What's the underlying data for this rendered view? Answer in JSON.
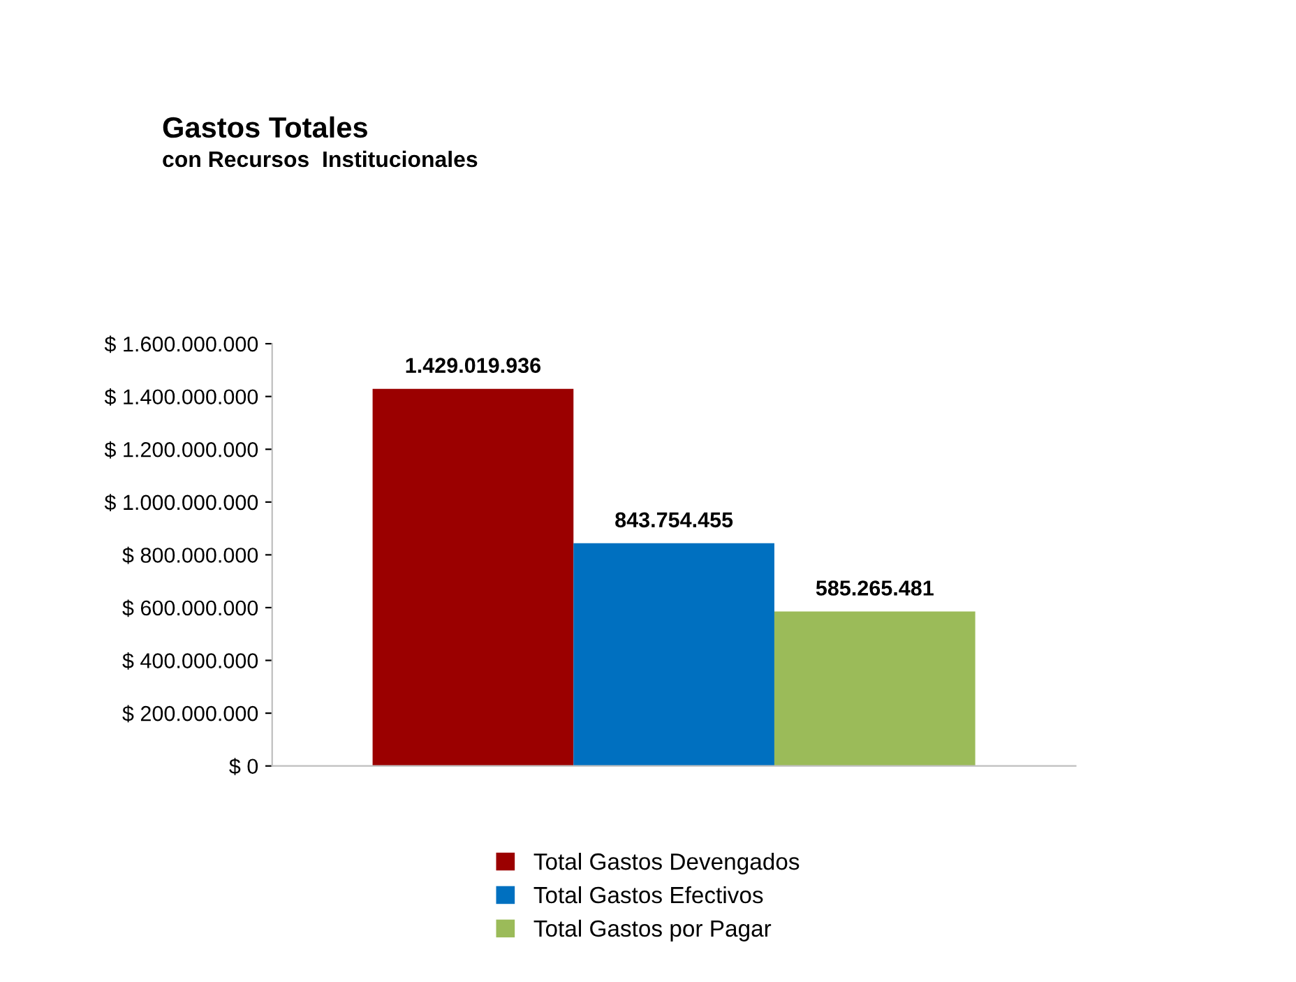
{
  "chart_data": {
    "type": "bar",
    "title": "Gastos Totales",
    "subtitle": "con Recursos  Institucionales",
    "categories": [
      null
    ],
    "series": [
      {
        "name": "Total Gastos Devengados",
        "color": "#9b0000",
        "values": [
          1429019936
        ],
        "value_labels": [
          "1.429.019.936"
        ]
      },
      {
        "name": "Total Gastos Efectivos",
        "color": "#0070c0",
        "values": [
          843754455
        ],
        "value_labels": [
          "843.754.455"
        ]
      },
      {
        "name": "Total Gastos por Pagar",
        "color": "#9bbb59",
        "values": [
          585265481
        ],
        "value_labels": [
          "585.265.481"
        ]
      }
    ],
    "ylim": [
      0,
      1600000000
    ],
    "yticks": [
      {
        "value": 0,
        "label": "$ 0"
      },
      {
        "value": 200000000,
        "label": "$ 200.000.000"
      },
      {
        "value": 400000000,
        "label": "$ 400.000.000"
      },
      {
        "value": 600000000,
        "label": "$ 600.000.000"
      },
      {
        "value": 800000000,
        "label": "$ 800.000.000"
      },
      {
        "value": 1000000000,
        "label": "$ 1.000.000.000"
      },
      {
        "value": 1200000000,
        "label": "$ 1.200.000.000"
      },
      {
        "value": 1400000000,
        "label": "$ 1.400.000.000"
      },
      {
        "value": 1600000000,
        "label": "$ 1.600.000.000"
      }
    ],
    "grid": false,
    "legend": "bottom"
  }
}
